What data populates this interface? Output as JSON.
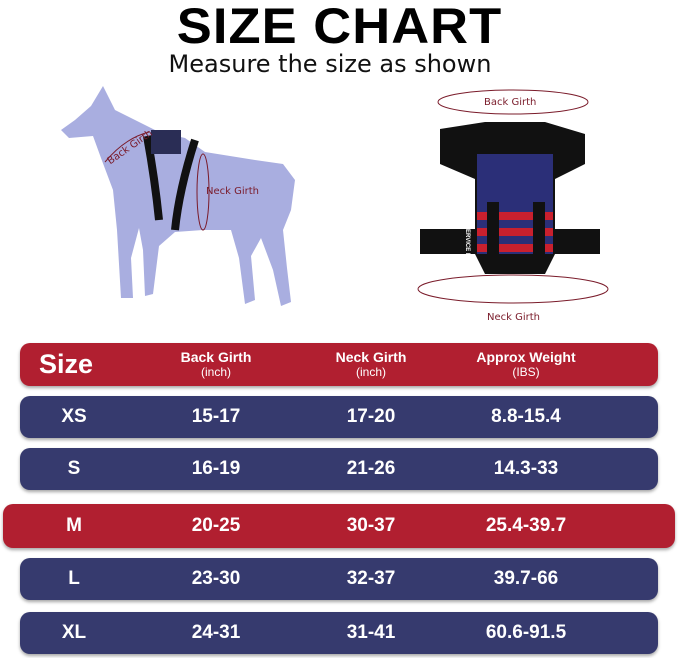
{
  "title": "SIZE CHART",
  "subtitle": "Measure the size as shown",
  "diagram_labels": {
    "dog_back_girth": "Back Girth",
    "dog_neck_girth": "Neck Girth",
    "harness_back_girth": "Back Girth",
    "harness_neck_girth": "Neck Girth",
    "harness_patch": "SERVICE DOG"
  },
  "table": {
    "headers": [
      {
        "label": "Size",
        "unit": ""
      },
      {
        "label": "Back Girth",
        "unit": "(inch)"
      },
      {
        "label": "Neck Girth",
        "unit": "(inch)"
      },
      {
        "label": "Approx Weight",
        "unit": "(IBS)"
      }
    ],
    "rows": [
      {
        "size": "XS",
        "back": "15-17",
        "neck": "17-20",
        "weight": "8.8-15.4"
      },
      {
        "size": "S",
        "back": "16-19",
        "neck": "21-26",
        "weight": "14.3-33"
      },
      {
        "size": "M",
        "back": "20-25",
        "neck": "30-37",
        "weight": "25.4-39.7",
        "highlighted": true
      },
      {
        "size": "L",
        "back": "23-30",
        "neck": "32-37",
        "weight": "39.7-66"
      },
      {
        "size": "XL",
        "back": "24-31",
        "neck": "31-41",
        "weight": "60.6-91.5"
      }
    ]
  },
  "colors": {
    "header": "#b11f30",
    "row": "#363a6e",
    "highlight": "#b11f30",
    "dog": "#a9aee0"
  }
}
